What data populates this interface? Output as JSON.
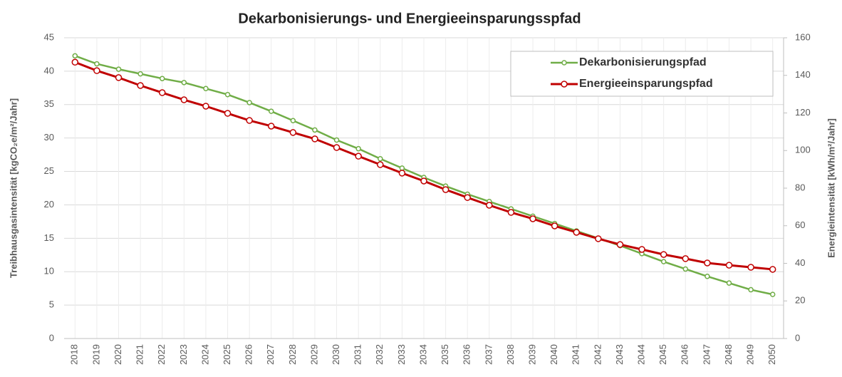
{
  "chart_data": {
    "type": "line",
    "title": "Dekarbonisierungs- und Energieeinsparungsspfad",
    "y_label": "Treibhausgasintensität [kgCO₂e/m²/Jahr]",
    "y2_label": "Energieintensität [kWh/m²/Jahr]",
    "categories": [
      "2018",
      "2019",
      "2020",
      "2021",
      "2022",
      "2023",
      "2024",
      "2025",
      "2026",
      "2027",
      "2028",
      "2029",
      "2030",
      "2031",
      "2032",
      "2033",
      "2034",
      "2035",
      "2036",
      "2037",
      "2038",
      "2039",
      "2040",
      "2041",
      "2042",
      "2043",
      "2044",
      "2045",
      "2046",
      "2047",
      "2048",
      "2049",
      "2050"
    ],
    "series": [
      {
        "name": "Dekarbonisierungspfad",
        "color": "#70ad47",
        "axis": "y",
        "values": [
          42.3,
          41.1,
          40.3,
          39.6,
          38.9,
          38.3,
          37.4,
          36.5,
          35.3,
          34.0,
          32.6,
          31.2,
          29.7,
          28.4,
          26.9,
          25.5,
          24.1,
          22.8,
          21.6,
          20.5,
          19.4,
          18.3,
          17.2,
          16.1,
          15.0,
          13.9,
          12.7,
          11.5,
          10.4,
          9.3,
          8.3,
          7.3,
          6.6
        ]
      },
      {
        "name": "Energieeinsparungspfad",
        "color": "#c00000",
        "axis": "y2",
        "values": [
          147,
          142.5,
          138.8,
          134.6,
          130.8,
          127,
          123.6,
          119.8,
          116,
          113,
          109.6,
          106.2,
          101.6,
          97,
          92.5,
          88,
          83.8,
          79.2,
          75,
          70.9,
          67.1,
          63.7,
          59.9,
          56.5,
          53.1,
          50,
          47.4,
          44.7,
          42.5,
          40.2,
          39,
          37.9,
          36.8
        ]
      }
    ],
    "ylim": [
      0,
      45
    ],
    "yticks": [
      0,
      5,
      10,
      15,
      20,
      25,
      30,
      35,
      40,
      45
    ],
    "y2lim": [
      0,
      160
    ],
    "y2ticks": [
      0,
      20,
      40,
      60,
      80,
      100,
      120,
      140,
      160
    ],
    "grid": true,
    "legend": "upper right"
  }
}
